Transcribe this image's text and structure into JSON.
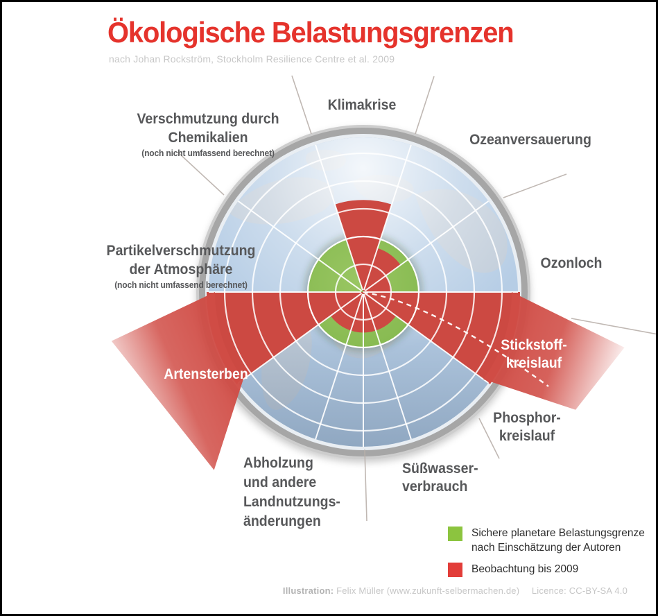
{
  "header": {
    "title": "Ökologische Belastungsgrenzen",
    "subtitle": "nach Johan Rockström, Stockholm Resilience Centre et al. 2009"
  },
  "chart_data": {
    "type": "polar_boundaries",
    "description": "Planetary boundaries radial chart over a globe; 10 sectors of 36°, 5 concentric rings; green disc = safe operating space (ring 2), red wedges = observed status up to 2009",
    "rings_total": 5,
    "safe_boundary_ring": 2,
    "sectors": [
      {
        "name": "Klimakrise",
        "lines": [
          "Klimakrise"
        ],
        "value_ratio": 1.66,
        "status": "exceeded",
        "label_color": "dark"
      },
      {
        "name": "Ozeanversauerung",
        "lines": [
          "Ozeanversauerung"
        ],
        "value_ratio": 0.83,
        "status": "within",
        "label_color": "dark"
      },
      {
        "name": "Ozonloch",
        "lines": [
          "Ozonloch"
        ],
        "value_ratio": 0.51,
        "status": "within",
        "label_color": "dark"
      },
      {
        "name": "Stickstoffkreislauf",
        "lines": [
          "Stickstoff-",
          "kreislauf"
        ],
        "value_ratio": 4.5,
        "off_chart": true,
        "status": "far exceeded",
        "label_color": "white"
      },
      {
        "name": "Phosphorkreislauf",
        "lines": [
          "Phosphor-",
          "kreislauf"
        ],
        "value_ratio": 0.73,
        "status": "within",
        "label_color": "dark"
      },
      {
        "name": "Süßwasserverbrauch",
        "lines": [
          "Süßwasser-",
          "verbrauch"
        ],
        "value_ratio": 0.73,
        "status": "within",
        "label_color": "dark"
      },
      {
        "name": "Abholzung und andere Landnutzungsänderungen",
        "lines": [
          "Abholzung",
          "und andere",
          "Landnutzungs-",
          "änderungen"
        ],
        "value_ratio": 0.73,
        "status": "within",
        "label_color": "dark"
      },
      {
        "name": "Artensterben",
        "lines": [
          "Artensterben"
        ],
        "value_ratio": 4.5,
        "off_chart": true,
        "status": "far exceeded",
        "label_color": "white"
      },
      {
        "name": "Partikelverschmutzung der Atmosphäre",
        "lines": [
          "Partikelverschmutzung",
          "der Atmosphäre"
        ],
        "note": "(noch nicht umfassend berechnet)",
        "value_ratio": null,
        "status": "not calculated",
        "label_color": "dark"
      },
      {
        "name": "Verschmutzung durch Chemikalien",
        "lines": [
          "Verschmutzung durch",
          "Chemikalien"
        ],
        "note": "(noch nicht umfassend berechnet)",
        "value_ratio": null,
        "status": "not calculated",
        "label_color": "dark"
      }
    ],
    "colors": {
      "safe_green": "#8cbe57",
      "observed_red": "#cc4942",
      "beam_red": "#d04c45",
      "ocean": "#b6cde5",
      "land": "#c2cdd8",
      "grid_white": "#ffffff",
      "rim_gray": "#a6a6a6",
      "outer_line_gray": "#b9b0ab"
    }
  },
  "legend": {
    "items": [
      {
        "swatch_style": "background:#8cc43f;",
        "color": "#8cc43f",
        "lines": [
          "Sichere planetare Belastungsgrenze",
          "nach Einschätzung der Autoren"
        ]
      },
      {
        "swatch_style": "background:#e23d39;",
        "color": "#e23d39",
        "lines": [
          "Beobachtung bis 2009"
        ]
      }
    ]
  },
  "footer": {
    "label": "Illustration:",
    "credit": "Felix Müller (www.zukunft-selbermachen.de)",
    "licence": "Licence: CC-BY-SA 4.0"
  }
}
